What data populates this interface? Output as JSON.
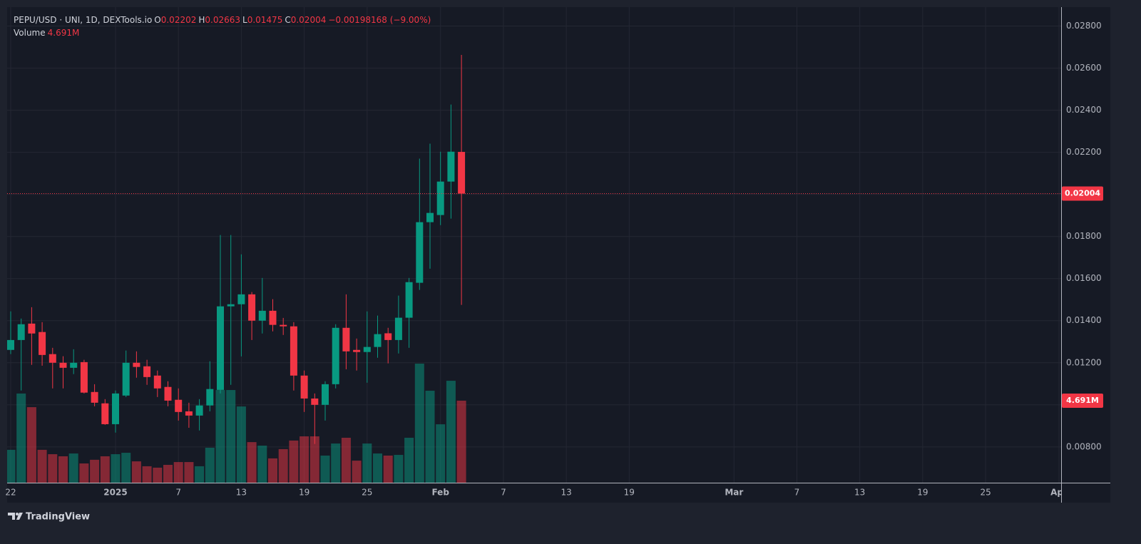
{
  "chart_data": {
    "type": "candlestick",
    "title": "PEPU/USD · UNI, 1D, DEXTools.io",
    "ohlc_labels": [
      "O",
      "H",
      "L",
      "C"
    ],
    "change": "−0.00198168 (−9.00%)",
    "x": [
      "2024-12-22",
      "2024-12-23",
      "2024-12-24",
      "2024-12-25",
      "2024-12-26",
      "2024-12-27",
      "2024-12-28",
      "2024-12-29",
      "2024-12-30",
      "2024-12-31",
      "2025-01-01",
      "2025-01-02",
      "2025-01-03",
      "2025-01-04",
      "2025-01-05",
      "2025-01-06",
      "2025-01-07",
      "2025-01-08",
      "2025-01-09",
      "2025-01-10",
      "2025-01-11",
      "2025-01-12",
      "2025-01-13",
      "2025-01-14",
      "2025-01-15",
      "2025-01-16",
      "2025-01-17",
      "2025-01-18",
      "2025-01-19",
      "2025-01-20",
      "2025-01-21",
      "2025-01-22",
      "2025-01-23",
      "2025-01-24",
      "2025-01-25",
      "2025-01-26",
      "2025-01-27",
      "2025-01-28",
      "2025-01-29",
      "2025-01-30",
      "2025-01-31",
      "2025-02-01",
      "2025-02-02",
      "2025-02-03"
    ],
    "open": [
      0.01261,
      0.01308,
      0.01386,
      0.01346,
      0.01241,
      0.012,
      0.01176,
      0.01203,
      0.01061,
      0.01007,
      0.00908,
      0.01044,
      0.012,
      0.01183,
      0.01139,
      0.01085,
      0.01024,
      0.00969,
      0.00949,
      0.00997,
      0.01071,
      0.01468,
      0.01478,
      0.01525,
      0.014,
      0.01447,
      0.0138,
      0.01373,
      0.01139,
      0.0103,
      0.01,
      0.01098,
      0.01366,
      0.01261,
      0.01251,
      0.01275,
      0.0134,
      0.01308,
      0.01414,
      0.0158,
      0.01868,
      0.01902,
      0.02061,
      0.02202
    ],
    "high": [
      0.01444,
      0.0141,
      0.01464,
      0.01393,
      0.01271,
      0.01231,
      0.01264,
      0.01214,
      0.01098,
      0.01027,
      0.01068,
      0.01258,
      0.01254,
      0.01214,
      0.01163,
      0.01112,
      0.01078,
      0.0101,
      0.01027,
      0.01207,
      0.01807,
      0.01807,
      0.01715,
      0.01536,
      0.01603,
      0.01502,
      0.01413,
      0.01393,
      0.01163,
      0.01054,
      0.01112,
      0.01383,
      0.01525,
      0.01315,
      0.01444,
      0.01424,
      0.01366,
      0.01519,
      0.01603,
      0.0217,
      0.02241,
      0.02203,
      0.02427,
      0.02663
    ],
    "low": [
      0.01241,
      0.01068,
      0.0119,
      0.01186,
      0.01078,
      0.01078,
      0.01146,
      0.01054,
      0.00993,
      0.00905,
      0.00868,
      0.01037,
      0.01129,
      0.01095,
      0.01037,
      0.00993,
      0.00925,
      0.00891,
      0.00878,
      0.00969,
      0.01054,
      0.01095,
      0.0123,
      0.01308,
      0.01339,
      0.01349,
      0.01332,
      0.01068,
      0.00966,
      0.00814,
      0.00925,
      0.01078,
      0.01169,
      0.01163,
      0.01105,
      0.01224,
      0.01197,
      0.01244,
      0.01271,
      0.01546,
      0.01647,
      0.01854,
      0.01885,
      0.01475
    ],
    "close": [
      0.01308,
      0.01383,
      0.01339,
      0.01237,
      0.012,
      0.01176,
      0.012,
      0.01058,
      0.0101,
      0.00908,
      0.01054,
      0.012,
      0.0118,
      0.01132,
      0.01078,
      0.0102,
      0.00966,
      0.00949,
      0.00997,
      0.01075,
      0.01468,
      0.01478,
      0.01525,
      0.014,
      0.01447,
      0.0138,
      0.01373,
      0.01139,
      0.0103,
      0.01,
      0.01098,
      0.01366,
      0.01254,
      0.01251,
      0.01275,
      0.01336,
      0.01308,
      0.01414,
      0.01583,
      0.01868,
      0.01912,
      0.02061,
      0.02203,
      0.02004
    ],
    "up_color": "#089981",
    "down_color": "#f23645",
    "volume": {
      "name": "Volume",
      "values": [
        1880000,
        5100000,
        4320000,
        1880000,
        1630000,
        1510000,
        1670000,
        1100000,
        1310000,
        1510000,
        1630000,
        1710000,
        1220000,
        940000,
        860000,
        1020000,
        1180000,
        1180000,
        940000,
        2000000,
        5300000,
        5300000,
        4360000,
        2320000,
        2120000,
        1390000,
        1920000,
        2410000,
        2650000,
        2650000,
        1550000,
        2240000,
        2570000,
        1260000,
        2240000,
        1670000,
        1550000,
        1590000,
        2570000,
        6810000,
        5260000,
        3340000,
        5830000,
        4691000
      ],
      "value_labels": [
        null,
        null,
        null,
        null,
        null,
        null,
        null,
        null,
        null,
        null,
        null,
        null,
        null,
        null,
        null,
        null,
        null,
        null,
        null,
        null,
        null,
        null,
        null,
        null,
        null,
        null,
        null,
        null,
        null,
        null,
        null,
        null,
        null,
        null,
        null,
        null,
        null,
        null,
        null,
        null,
        null,
        null,
        null,
        "4.691M"
      ]
    },
    "xlim": [
      "2024-12-22",
      "2025-04-01"
    ],
    "xticks": [
      {
        "value": "2024-12-22",
        "label": "22"
      },
      {
        "value": "2025-01-01",
        "label": "2025"
      },
      {
        "value": "2025-01-07",
        "label": "7"
      },
      {
        "value": "2025-01-13",
        "label": "13"
      },
      {
        "value": "2025-01-19",
        "label": "19"
      },
      {
        "value": "2025-01-25",
        "label": "25"
      },
      {
        "value": "2025-02-01",
        "label": "Feb"
      },
      {
        "value": "2025-02-07",
        "label": "7"
      },
      {
        "value": "2025-02-13",
        "label": "13"
      },
      {
        "value": "2025-02-19",
        "label": "19"
      },
      {
        "value": "2025-03-01",
        "label": "Mar"
      },
      {
        "value": "2025-03-07",
        "label": "7"
      },
      {
        "value": "2025-03-13",
        "label": "13"
      },
      {
        "value": "2025-03-19",
        "label": "19"
      },
      {
        "value": "2025-03-25",
        "label": "25"
      },
      {
        "value": "2025-04-01",
        "label": "Apr"
      }
    ],
    "ylim": [
      0.0063,
      0.0289
    ],
    "yticks": [
      {
        "value": 0.008,
        "label": "0.00800"
      },
      {
        "value": 0.01,
        "label": "0.01000"
      },
      {
        "value": 0.012,
        "label": "0.01200"
      },
      {
        "value": 0.014,
        "label": "0.01400"
      },
      {
        "value": 0.016,
        "label": "0.01600"
      },
      {
        "value": 0.018,
        "label": "0.01800"
      },
      {
        "value": 0.02,
        "label": "0.02000"
      },
      {
        "value": 0.022,
        "label": "0.02200"
      },
      {
        "value": 0.024,
        "label": "0.02400"
      },
      {
        "value": 0.026,
        "label": "0.02600"
      },
      {
        "value": 0.028,
        "label": "0.02800"
      }
    ],
    "y2lim": [
      0,
      27200000
    ],
    "grid": true
  },
  "footer": {
    "brand": "TradingView"
  }
}
